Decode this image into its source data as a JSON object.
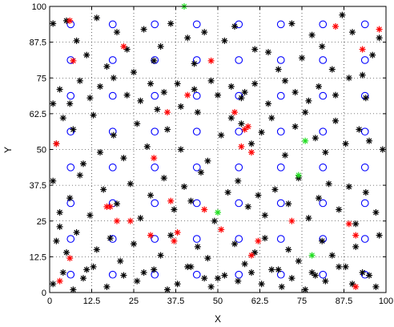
{
  "chart_data": {
    "type": "scatter",
    "title": "",
    "xlabel": "X",
    "ylabel": "Y",
    "xlim": [
      0,
      100
    ],
    "ylim": [
      0,
      100
    ],
    "grid": true,
    "grid_style": "dotted",
    "xticks": [
      "0",
      "12.5",
      "25",
      "37.5",
      "50",
      "62.5",
      "75",
      "87.5",
      "100"
    ],
    "yticks": [
      "0",
      "12.5",
      "25",
      "37.5",
      "50",
      "62.5",
      "75",
      "87.5",
      "100"
    ],
    "colors": {
      "blue": "#0000ff",
      "black": "#000000",
      "red": "#ff0000",
      "green": "#22dd22"
    },
    "series": [
      {
        "marker": "circle",
        "color": "#0000ff",
        "x": [
          6.25,
          18.75,
          31.25,
          43.75,
          56.25,
          68.75,
          81.25,
          93.75,
          6.25,
          18.75,
          31.25,
          43.75,
          56.25,
          68.75,
          81.25,
          93.75,
          6.25,
          18.75,
          31.25,
          43.75,
          56.25,
          68.75,
          81.25,
          93.75,
          6.25,
          18.75,
          31.25,
          43.75,
          56.25,
          68.75,
          81.25,
          93.75,
          6.25,
          18.75,
          31.25,
          43.75,
          56.25,
          68.75,
          81.25,
          93.75,
          6.25,
          18.75,
          31.25,
          43.75,
          56.25,
          68.75,
          81.25,
          93.75,
          6.25,
          18.75,
          31.25,
          43.75,
          56.25,
          68.75,
          81.25,
          93.75,
          6.25,
          18.75,
          31.25,
          43.75,
          56.25,
          68.75,
          81.25,
          93.75
        ],
        "y": [
          6.25,
          6.25,
          6.25,
          6.25,
          6.25,
          6.25,
          6.25,
          6.25,
          18.75,
          18.75,
          18.75,
          18.75,
          18.75,
          18.75,
          18.75,
          18.75,
          31.25,
          31.25,
          31.25,
          31.25,
          31.25,
          31.25,
          31.25,
          31.25,
          43.75,
          43.75,
          43.75,
          43.75,
          43.75,
          43.75,
          43.75,
          43.75,
          56.25,
          56.25,
          56.25,
          56.25,
          56.25,
          56.25,
          56.25,
          56.25,
          68.75,
          68.75,
          68.75,
          68.75,
          68.75,
          68.75,
          68.75,
          68.75,
          81.25,
          81.25,
          81.25,
          81.25,
          81.25,
          81.25,
          81.25,
          81.25,
          93.75,
          93.75,
          93.75,
          93.75,
          93.75,
          93.75,
          93.75,
          93.75
        ]
      },
      {
        "marker": "asterisk",
        "color": "#000000",
        "x": [
          1,
          1,
          3,
          5,
          8,
          11,
          14,
          17,
          20,
          23,
          25,
          28,
          31,
          33,
          36,
          38,
          41,
          43,
          46,
          48,
          52,
          55,
          58,
          61,
          65,
          68,
          72,
          75,
          78,
          81,
          84,
          87,
          90,
          93,
          96,
          98,
          2,
          4,
          7,
          10,
          13,
          15,
          19,
          22,
          26,
          29,
          32,
          35,
          39,
          44,
          47,
          51,
          54,
          57,
          60,
          63,
          66,
          70,
          73,
          76,
          79,
          82,
          85,
          88,
          92,
          95,
          99,
          1,
          3,
          6,
          9,
          12,
          16,
          20,
          24,
          27,
          30,
          34,
          37,
          40,
          42,
          45,
          49,
          53,
          56,
          59,
          62,
          64,
          67,
          71,
          74,
          77,
          80,
          83,
          86,
          89,
          91,
          94,
          97,
          2,
          5,
          8,
          11,
          14,
          18,
          21,
          25,
          28,
          33,
          36,
          41,
          44,
          47,
          50,
          55,
          58,
          61,
          64,
          68,
          71,
          74,
          78,
          81,
          84,
          88,
          91,
          95,
          98,
          1,
          4,
          7,
          10,
          13,
          17,
          22,
          26,
          31,
          35,
          38,
          42,
          46,
          48,
          52,
          56,
          60,
          63,
          66,
          69,
          72,
          76,
          79,
          82,
          86,
          90,
          93,
          97,
          3,
          6,
          9,
          12,
          15,
          19,
          23,
          27,
          30,
          34,
          39,
          43,
          50,
          54,
          57,
          61,
          65,
          70,
          73,
          77,
          80,
          85,
          89,
          94
        ],
        "y": [
          94,
          66,
          23,
          95,
          88,
          83,
          96,
          79,
          91,
          85,
          77,
          92,
          81,
          86,
          94,
          73,
          89,
          80,
          91,
          74,
          88,
          93,
          70,
          85,
          84,
          78,
          94,
          82,
          90,
          86,
          78,
          97,
          91,
          76,
          83,
          89,
          52,
          61,
          57,
          45,
          62,
          49,
          55,
          47,
          59,
          51,
          64,
          57,
          50,
          63,
          46,
          55,
          61,
          59,
          52,
          56,
          61,
          48,
          58,
          63,
          54,
          49,
          60,
          52,
          57,
          53,
          50,
          39,
          28,
          33,
          41,
          27,
          36,
          31,
          38,
          26,
          34,
          40,
          29,
          37,
          32,
          42,
          25,
          35,
          39,
          30,
          34,
          27,
          36,
          31,
          40,
          26,
          33,
          38,
          29,
          37,
          24,
          35,
          28,
          18,
          14,
          21,
          8,
          15,
          19,
          11,
          17,
          7,
          13,
          20,
          9,
          16,
          12,
          5,
          17,
          10,
          14,
          19,
          8,
          15,
          11,
          7,
          18,
          13,
          9,
          16,
          6,
          20,
          3,
          7,
          1,
          5,
          9,
          2,
          6,
          4,
          8,
          1,
          3,
          9,
          5,
          2,
          6,
          4,
          7,
          3,
          8,
          2,
          5,
          1,
          6,
          4,
          9,
          3,
          7,
          2,
          71,
          66,
          74,
          68,
          72,
          75,
          69,
          67,
          73,
          70,
          65,
          71,
          69,
          72,
          68,
          73,
          66,
          74,
          70,
          67,
          72,
          69,
          75,
          68
        ]
      },
      {
        "marker": "asterisk",
        "color": "#ff0000",
        "x": [
          2,
          3,
          6,
          7,
          17,
          20,
          22,
          31,
          35,
          38,
          41,
          46,
          48,
          51,
          55,
          57,
          58,
          60,
          62,
          72,
          85,
          91,
          93,
          98,
          6,
          18,
          24,
          30,
          36,
          37,
          59,
          60,
          89,
          91
        ],
        "y": [
          52,
          4,
          95,
          81,
          30,
          25,
          86,
          47,
          63,
          21,
          69,
          29,
          81,
          22,
          63,
          51,
          57,
          49,
          18,
          25,
          93,
          20,
          85,
          92,
          12,
          30,
          25,
          20,
          32,
          18,
          58,
          13,
          24,
          2
        ]
      },
      {
        "marker": "asterisk",
        "color": "#22dd22",
        "x": [
          40,
          50,
          74,
          76,
          78
        ],
        "y": [
          100,
          28,
          41,
          53,
          13
        ]
      }
    ]
  }
}
